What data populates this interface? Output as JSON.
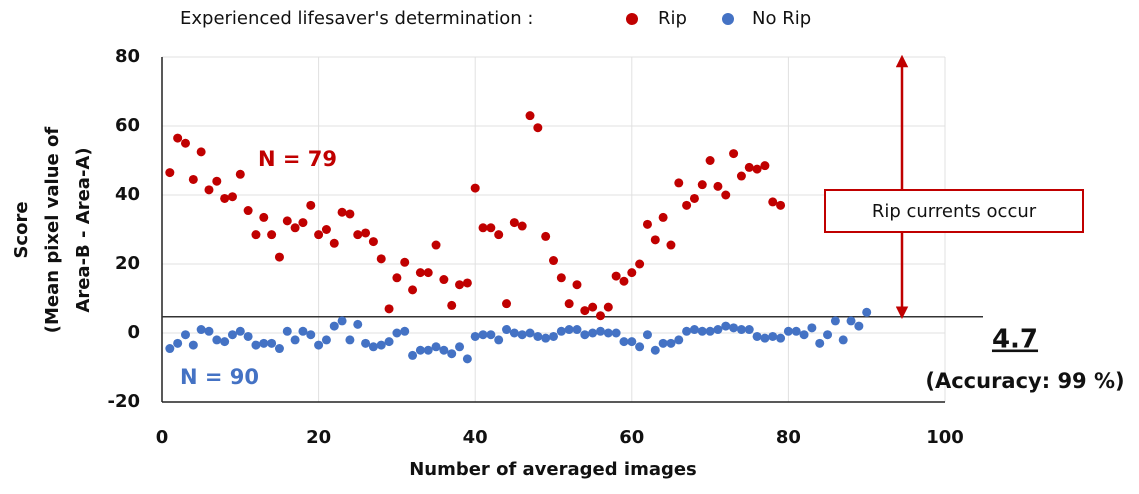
{
  "chart_data": {
    "type": "scatter",
    "legend_title": "Experienced lifesaver's determination :",
    "xlabel": "Number of averaged images",
    "ylabel": [
      "Score",
      "(Mean pixel value of",
      "Area-B - Area-A)"
    ],
    "xlim": [
      0,
      100
    ],
    "xticks": [
      0,
      20,
      40,
      60,
      80,
      100
    ],
    "ylim": [
      -20,
      80
    ],
    "yticks": [
      -20,
      0,
      20,
      40,
      60,
      80
    ],
    "grid": true,
    "threshold": 4.7,
    "annotations": {
      "rip_n": "N = 79",
      "norip_n": "N = 90",
      "accuracy": "(Accuracy: 99 %)",
      "box": "Rip currents occur"
    },
    "series": [
      {
        "name": "Rip",
        "color": "#c00000",
        "x": [
          1,
          2,
          3,
          4,
          5,
          6,
          7,
          8,
          9,
          10,
          11,
          12,
          13,
          14,
          15,
          16,
          17,
          18,
          19,
          20,
          21,
          22,
          23,
          24,
          25,
          26,
          27,
          28,
          29,
          30,
          31,
          32,
          33,
          34,
          35,
          36,
          37,
          38,
          39,
          40,
          41,
          42,
          43,
          44,
          45,
          46,
          47,
          48,
          49,
          50,
          51,
          52,
          53,
          54,
          55,
          56,
          57,
          58,
          59,
          60,
          61,
          62,
          63,
          64,
          65,
          66,
          67,
          68,
          69,
          70,
          71,
          72,
          73,
          74,
          75,
          76,
          77,
          78,
          79
        ],
        "values": [
          46.5,
          56.5,
          55,
          44.5,
          52.5,
          41.5,
          44,
          39,
          39.5,
          46,
          35.5,
          28.5,
          33.5,
          28.5,
          22,
          32.5,
          30.5,
          32,
          37,
          28.5,
          30,
          26,
          35,
          34.5,
          28.5,
          29,
          26.5,
          21.5,
          7,
          16,
          20.5,
          12.5,
          17.5,
          17.5,
          25.5,
          15.5,
          8,
          14,
          14.5,
          42,
          30.5,
          30.5,
          28.5,
          8.5,
          32,
          31,
          63,
          59.5,
          28,
          21,
          16,
          8.5,
          14,
          6.5,
          7.5,
          5,
          7.5,
          16.5,
          15,
          17.5,
          20,
          31.5,
          27,
          33.5,
          25.5,
          43.5,
          37,
          39,
          43,
          50,
          42.5,
          40,
          52,
          45.5,
          48,
          47.5,
          48.5,
          38,
          37
        ]
      },
      {
        "name": "No Rip",
        "color": "#4472c4",
        "x": [
          1,
          2,
          3,
          4,
          5,
          6,
          7,
          8,
          9,
          10,
          11,
          12,
          13,
          14,
          15,
          16,
          17,
          18,
          19,
          20,
          21,
          22,
          23,
          24,
          25,
          26,
          27,
          28,
          29,
          30,
          31,
          32,
          33,
          34,
          35,
          36,
          37,
          38,
          39,
          40,
          41,
          42,
          43,
          44,
          45,
          46,
          47,
          48,
          49,
          50,
          51,
          52,
          53,
          54,
          55,
          56,
          57,
          58,
          59,
          60,
          61,
          62,
          63,
          64,
          65,
          66,
          67,
          68,
          69,
          70,
          71,
          72,
          73,
          74,
          75,
          76,
          77,
          78,
          79,
          80,
          81,
          82,
          83,
          84,
          85,
          86,
          87,
          88,
          89,
          90
        ],
        "values": [
          -4.5,
          -3,
          -0.5,
          -3.5,
          1,
          0.5,
          -2,
          -2.5,
          -0.5,
          0.5,
          -1,
          -3.5,
          -3,
          -3,
          -4.5,
          0.5,
          -2,
          0.5,
          -0.5,
          -3.5,
          -2,
          2,
          3.5,
          -2,
          2.5,
          -3,
          -4,
          -3.5,
          -2.5,
          0,
          0.5,
          -6.5,
          -5,
          -5,
          -4,
          -5,
          -6,
          -4,
          -7.5,
          -1,
          -0.5,
          -0.5,
          -2,
          1,
          0,
          -0.5,
          0,
          -1,
          -1.5,
          -1,
          0.5,
          1,
          1,
          -0.5,
          0,
          0.5,
          0,
          0,
          -2.5,
          -2.5,
          -4,
          -0.5,
          -5,
          -3,
          -3,
          -2,
          0.5,
          1,
          0.5,
          0.5,
          1,
          2,
          1.5,
          1,
          1,
          -1,
          -1.5,
          -1,
          -1.5,
          0.5,
          0.5,
          -0.5,
          1.5,
          -3,
          -0.5,
          3.5,
          -2,
          3.5,
          2,
          6
        ]
      }
    ]
  }
}
